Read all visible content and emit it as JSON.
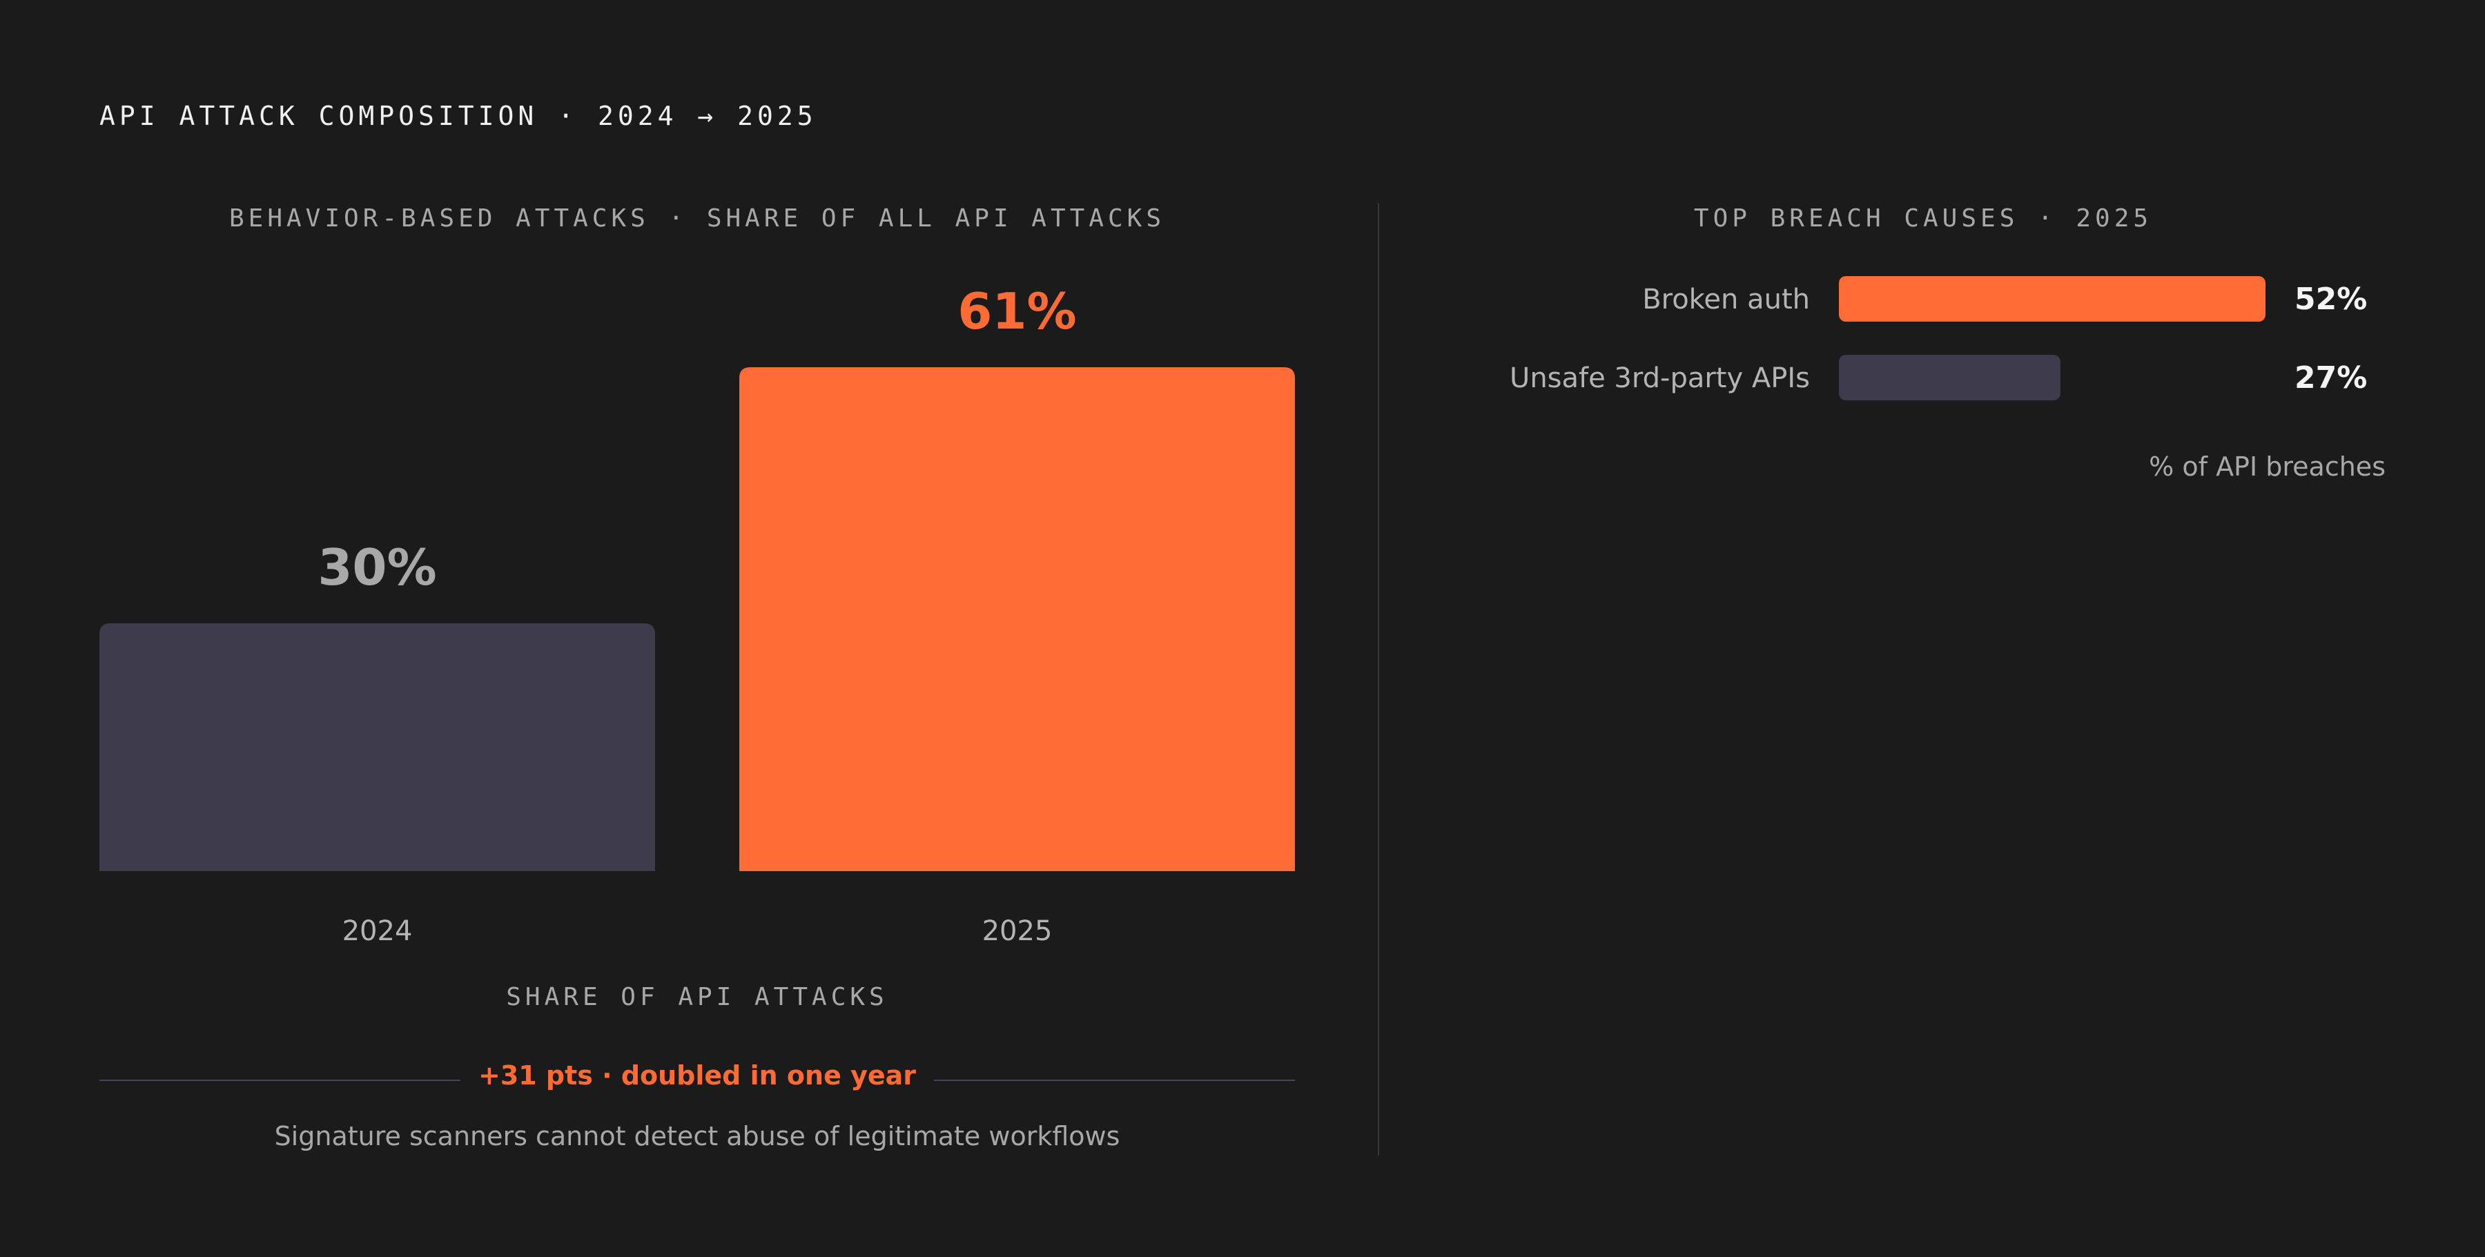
{
  "page_title": "API ATTACK COMPOSITION · 2024 → 2025",
  "colors": {
    "accent": "#ff6b35",
    "muted": "#3e3c4c",
    "background": "#1b1b1b"
  },
  "chart_data": [
    {
      "type": "bar",
      "title": "BEHAVIOR-BASED ATTACKS · SHARE OF ALL API ATTACKS",
      "categories": [
        "2024",
        "2025"
      ],
      "values": [
        30,
        61
      ],
      "value_labels": [
        "30%",
        "61%"
      ],
      "xlabel": "SHARE OF API ATTACKS",
      "ylabel": "",
      "ylim": [
        0,
        61
      ],
      "grid": false,
      "bar_colors": [
        "#3e3c4c",
        "#ff6b35"
      ],
      "annotation": "+31 pts · doubled in one year",
      "note": "Signature scanners cannot detect abuse of legitimate workflows"
    },
    {
      "type": "bar",
      "orientation": "horizontal",
      "title": "TOP BREACH CAUSES · 2025",
      "categories": [
        "Broken auth",
        "Unsafe 3rd-party APIs"
      ],
      "values": [
        52,
        27
      ],
      "value_labels": [
        "52%",
        "27%"
      ],
      "xlabel": "% of API breaches",
      "xlim": [
        0,
        52
      ],
      "grid": false,
      "bar_colors": [
        "#ff6b35",
        "#3e3c4c"
      ]
    }
  ]
}
